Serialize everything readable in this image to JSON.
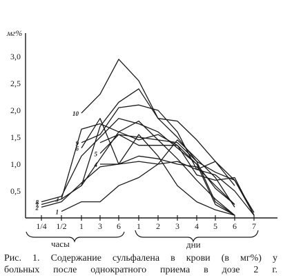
{
  "chart_data": {
    "type": "line",
    "ylabel": "мг%",
    "ylim": [
      0,
      3.2
    ],
    "yticks": [
      "0,5",
      "1,0",
      "1,5",
      "2,0",
      "2,5",
      "3,0"
    ],
    "x_categories": [
      "1/4",
      "1/2",
      "1",
      "3",
      "6",
      "1",
      "2",
      "3",
      "4",
      "5",
      "6",
      "7"
    ],
    "group_labels": {
      "hours": "часы",
      "days": "дни"
    },
    "grid": false,
    "legend": "inline numbers",
    "series": [
      {
        "name": "1",
        "values": [
          null,
          0.12,
          0.3,
          0.3,
          0.6,
          0.75,
          1.0,
          1.05,
          0.9,
          0.8,
          0.5,
          0.05
        ]
      },
      {
        "name": "2",
        "values": [
          0.2,
          0.3,
          0.65,
          0.95,
          1.0,
          1.15,
          1.1,
          1.0,
          0.95,
          0.6,
          0.25,
          null
        ]
      },
      {
        "name": "3",
        "values": [
          null,
          0.35,
          0.6,
          1.1,
          1.6,
          1.8,
          1.45,
          1.1,
          0.7,
          0.35,
          0.05,
          null
        ]
      },
      {
        "name": "4",
        "values": [
          null,
          null,
          null,
          1.0,
          1.0,
          1.05,
          1.0,
          1.45,
          1.1,
          0.75,
          0.2,
          null
        ]
      },
      {
        "name": "5",
        "values": [
          null,
          null,
          null,
          1.2,
          1.55,
          1.35,
          1.35,
          1.35,
          1.0,
          0.25,
          0.05,
          null
        ]
      },
      {
        "name": "6",
        "values": [
          null,
          null,
          1.3,
          1.85,
          1.0,
          1.55,
          1.15,
          0.6,
          0.3,
          0.15,
          0.05,
          null
        ]
      },
      {
        "name": "7",
        "values": [
          0.25,
          0.35,
          1.65,
          1.75,
          1.6,
          1.45,
          1.55,
          1.35,
          0.8,
          0.7,
          0.75,
          0.05
        ]
      },
      {
        "name": "8",
        "values": [
          0.3,
          0.4,
          1.15,
          1.5,
          1.85,
          1.75,
          1.6,
          1.3,
          1.0,
          0.55,
          0.25,
          null
        ]
      },
      {
        "name": "9",
        "values": [
          null,
          null,
          1.4,
          1.55,
          2.05,
          2.1,
          2.0,
          1.6,
          0.9,
          1.05,
          0.6,
          null
        ]
      },
      {
        "name": "10",
        "values": [
          null,
          null,
          1.95,
          2.3,
          2.95,
          2.55,
          1.85,
          1.5,
          1.05,
          0.3,
          0.05,
          null
        ]
      },
      {
        "name": "",
        "values": [
          null,
          null,
          0.6,
          1.7,
          2.15,
          2.4,
          1.85,
          1.8,
          1.45,
          1.05,
          0.7,
          0.1
        ]
      },
      {
        "name": "",
        "values": [
          null,
          null,
          null,
          1.4,
          1.55,
          1.5,
          1.45,
          1.4,
          1.05,
          0.85,
          0.7,
          0.05
        ]
      }
    ]
  },
  "caption_lines": [
    "Рис. 1. Содержание сульфалена в крови (в мг%) у",
    "больных после однократного приема в дозе 2 г."
  ]
}
